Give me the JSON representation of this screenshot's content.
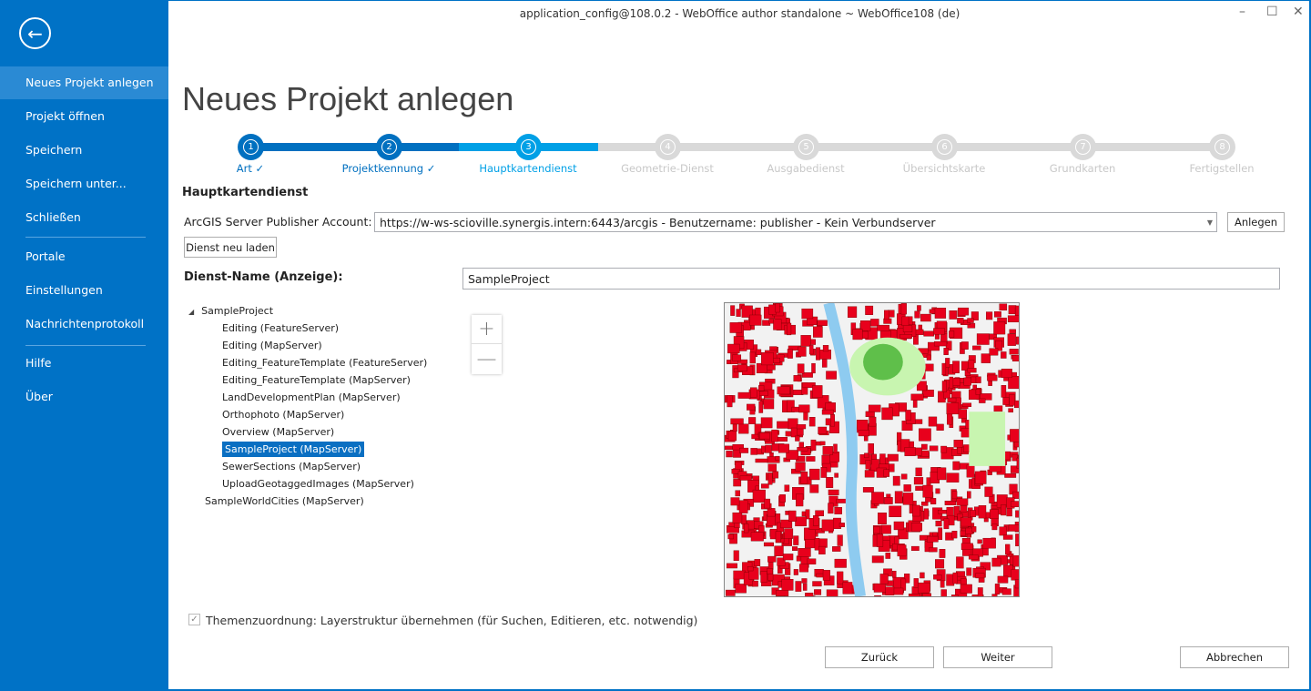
{
  "window": {
    "title": "application_config@108.0.2 - WebOffice author standalone ~ WebOffice108 (de)",
    "minimize": "–",
    "maximize": "☐",
    "close": "✕"
  },
  "sidebar": {
    "back_icon": "arrow-left-icon",
    "items": [
      {
        "label": "Neues Projekt anlegen",
        "selected": true
      },
      {
        "label": "Projekt öffnen"
      },
      {
        "label": "Speichern"
      },
      {
        "label": "Speichern unter..."
      },
      {
        "label": "Schließen"
      },
      {
        "label": "Portale"
      },
      {
        "label": "Einstellungen"
      },
      {
        "label": "Nachrichtenprotokoll"
      },
      {
        "label": "Hilfe"
      },
      {
        "label": "Über"
      }
    ]
  },
  "page": {
    "title": "Neues Projekt anlegen"
  },
  "steps": [
    {
      "num": "1",
      "label": "Art ✓",
      "state": "done"
    },
    {
      "num": "2",
      "label": "Projektkennung ✓",
      "state": "done"
    },
    {
      "num": "3",
      "label": "Hauptkartendienst",
      "state": "active"
    },
    {
      "num": "4",
      "label": "Geometrie-Dienst",
      "state": "todo"
    },
    {
      "num": "5",
      "label": "Ausgabedienst",
      "state": "todo"
    },
    {
      "num": "6",
      "label": "Übersichtskarte",
      "state": "todo"
    },
    {
      "num": "7",
      "label": "Grundkarten",
      "state": "todo"
    },
    {
      "num": "8",
      "label": "Fertigstellen",
      "state": "todo"
    }
  ],
  "colors": {
    "sidebar": "#0072c6",
    "done": "#0070c0",
    "active": "#00a0e6",
    "todo": "#d9d9d9"
  },
  "form": {
    "section": "Hauptkartendienst",
    "account_label": "ArcGIS Server Publisher Account:",
    "account_value": "https://w-ws-scioville.synergis.intern:6443/arcgis  -  Benutzername: publisher - Kein Verbundserver",
    "create_button": "Anlegen",
    "reload_button": "Dienst neu laden",
    "service_name_label": "Dienst-Name (Anzeige):",
    "service_name_value": "SampleProject",
    "checkbox_label": "Themenzuordnung: Layerstruktur übernehmen (für Suchen, Editieren, etc. notwendig)",
    "checkbox_checked": true
  },
  "tree": {
    "root": "SampleProject",
    "children": [
      "Editing (FeatureServer)",
      "Editing (MapServer)",
      "Editing_FeatureTemplate (FeatureServer)",
      "Editing_FeatureTemplate (MapServer)",
      "LandDevelopmentPlan (MapServer)",
      "Orthophoto (MapServer)",
      "Overview (MapServer)",
      "SampleProject (MapServer)",
      "SewerSections (MapServer)",
      "UploadGeotaggedImages (MapServer)"
    ],
    "selected": "SampleProject (MapServer)",
    "sibling": "SampleWorldCities (MapServer)"
  },
  "map": {
    "zoom_in": "+",
    "zoom_out": "—"
  },
  "footer": {
    "back": "Zurück",
    "next": "Weiter",
    "cancel": "Abbrechen"
  }
}
